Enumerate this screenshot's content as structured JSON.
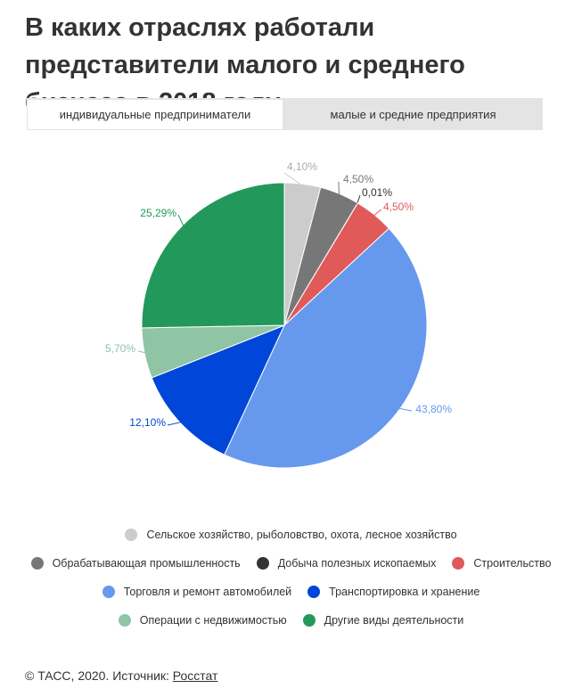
{
  "title": "В каких отраслях работали представители малого и среднего бизнеса в 2018 году",
  "tabs": [
    {
      "label": "индивидуальные предприниматели",
      "active": true
    },
    {
      "label": "малые и средние предприятия",
      "active": false
    }
  ],
  "chart_data": {
    "type": "pie",
    "title": "",
    "slices": [
      {
        "label": "Сельское хозяйство, рыболовство, охота, лесное хозяйство",
        "value": 4.1,
        "display": "4,10%",
        "color": "#cccccc"
      },
      {
        "label": "Обрабатывающая промышленность",
        "value": 4.5,
        "display": "4,50%",
        "color": "#777777"
      },
      {
        "label": "Добыча полезных ископаемых",
        "value": 0.01,
        "display": "0,01%",
        "color": "#333333"
      },
      {
        "label": "Строительство",
        "value": 4.5,
        "display": "4,50%",
        "color": "#e05a5a"
      },
      {
        "label": "Торговля и ремонт автомобилей",
        "value": 43.8,
        "display": "43,80%",
        "color": "#6699ee"
      },
      {
        "label": "Транспортировка и хранение",
        "value": 12.1,
        "display": "12,10%",
        "color": "#0046d8"
      },
      {
        "label": "Операции с недвижимостью",
        "value": 5.7,
        "display": "5,70%",
        "color": "#8fc4a5"
      },
      {
        "label": "Другие виды деятельности",
        "value": 25.29,
        "display": "25,29%",
        "color": "#22995a"
      }
    ],
    "legend_position": "bottom",
    "legend_rows": [
      [
        0
      ],
      [
        1,
        2,
        3
      ],
      [
        4,
        5
      ],
      [
        6,
        7
      ]
    ]
  },
  "footer": {
    "prefix": "© ТАСС, 2020. Источник: ",
    "source": "Росстат"
  }
}
